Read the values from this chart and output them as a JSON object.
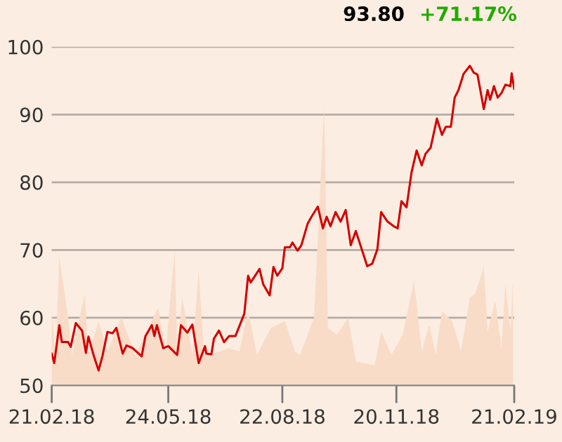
{
  "chart_data": {
    "type": "line",
    "annotations": [
      "93.80",
      "+71.17%"
    ],
    "xlim": [
      "2018-02-21",
      "2019-02-21"
    ],
    "xticks": [
      {
        "value": "2018-02-21",
        "label": "21.02.18"
      },
      {
        "value": "2018-05-24",
        "label": "24.05.18"
      },
      {
        "value": "2018-08-22",
        "label": "22.08.18"
      },
      {
        "value": "2018-11-20",
        "label": "20.11.18"
      },
      {
        "value": "2019-02-21",
        "label": "21.02.19"
      }
    ],
    "ylim": [
      50,
      100
    ],
    "yticks": [
      50,
      60,
      70,
      80,
      90,
      100
    ],
    "grid": "y",
    "legend": false,
    "series": [
      {
        "type": "area",
        "color": "#f8dcc8",
        "x": [
          "2018-02-21",
          "2018-02-24",
          "2018-02-27",
          "2018-03-06",
          "2018-03-09",
          "2018-03-19",
          "2018-03-22",
          "2018-03-30",
          "2018-04-06",
          "2018-04-17",
          "2018-04-28",
          "2018-05-16",
          "2018-05-22",
          "2018-05-29",
          "2018-05-31",
          "2018-06-04",
          "2018-06-12",
          "2018-06-17",
          "2018-06-21",
          "2018-07-04",
          "2018-07-11",
          "2018-07-19",
          "2018-07-26",
          "2018-08-02",
          "2018-08-13",
          "2018-08-24",
          "2018-09-01",
          "2018-09-05",
          "2018-09-16",
          "2018-09-24",
          "2018-09-27",
          "2018-10-04",
          "2018-10-13",
          "2018-10-19",
          "2018-11-03",
          "2018-11-08",
          "2018-11-16",
          "2018-11-25",
          "2018-12-04",
          "2018-12-10",
          "2018-12-16",
          "2018-12-21",
          "2018-12-26",
          "2019-01-03",
          "2019-01-10",
          "2019-01-17",
          "2019-01-21",
          "2019-01-28",
          "2019-01-31",
          "2019-02-06",
          "2019-02-11",
          "2019-02-14",
          "2019-02-18",
          "2019-02-20"
        ],
        "values": [
          61,
          54.5,
          69,
          60,
          54.5,
          63.5,
          54.5,
          59.5,
          55,
          60,
          54.5,
          61.5,
          55,
          70,
          55,
          63,
          54.5,
          67,
          54.5,
          55,
          55.5,
          55,
          61,
          54.5,
          58.5,
          59.5,
          55,
          54.5,
          60,
          91,
          58.5,
          57.5,
          60,
          53.5,
          53,
          58,
          54.5,
          57.5,
          65.5,
          55,
          59,
          54.5,
          61,
          59.5,
          55,
          63,
          63.5,
          67.5,
          58,
          62.5,
          55.5,
          65,
          58,
          65.5
        ]
      },
      {
        "color": "#d40000",
        "x": [
          "2018-02-21",
          "2018-02-23",
          "2018-02-27",
          "2018-03-01",
          "2018-03-06",
          "2018-03-08",
          "2018-03-12",
          "2018-03-17",
          "2018-03-20",
          "2018-03-22",
          "2018-03-26",
          "2018-03-30",
          "2018-04-02",
          "2018-04-06",
          "2018-04-10",
          "2018-04-13",
          "2018-04-18",
          "2018-04-21",
          "2018-04-26",
          "2018-05-03",
          "2018-05-06",
          "2018-05-11",
          "2018-05-13",
          "2018-05-15",
          "2018-05-20",
          "2018-05-24",
          "2018-05-31",
          "2018-06-03",
          "2018-06-08",
          "2018-06-12",
          "2018-06-17",
          "2018-06-22",
          "2018-06-23",
          "2018-06-27",
          "2018-06-29",
          "2018-07-03",
          "2018-07-07",
          "2018-07-11",
          "2018-07-16",
          "2018-07-19",
          "2018-07-23",
          "2018-07-26",
          "2018-07-28",
          "2018-08-04",
          "2018-08-07",
          "2018-08-12",
          "2018-08-15",
          "2018-08-18",
          "2018-08-22",
          "2018-08-24",
          "2018-08-28",
          "2018-08-30",
          "2018-09-03",
          "2018-09-06",
          "2018-09-11",
          "2018-09-14",
          "2018-09-19",
          "2018-09-23",
          "2018-09-26",
          "2018-09-29",
          "2018-10-03",
          "2018-10-07",
          "2018-10-11",
          "2018-10-15",
          "2018-10-19",
          "2018-10-23",
          "2018-10-28",
          "2018-11-01",
          "2018-11-05",
          "2018-11-08",
          "2018-11-13",
          "2018-11-18",
          "2018-11-21",
          "2018-11-24",
          "2018-11-28",
          "2018-12-02",
          "2018-12-06",
          "2018-12-10",
          "2018-12-13",
          "2018-12-17",
          "2018-12-22",
          "2018-12-26",
          "2018-12-29",
          "2019-01-02",
          "2019-01-05",
          "2019-01-08",
          "2019-01-12",
          "2019-01-17",
          "2019-01-20",
          "2019-01-23",
          "2019-01-28",
          "2019-01-31",
          "2019-02-02",
          "2019-02-05",
          "2019-02-08",
          "2019-02-11",
          "2019-02-14",
          "2019-02-18",
          "2019-02-19",
          "2019-02-21"
        ],
        "values": [
          54.7,
          53.3,
          58.9,
          56.4,
          56.4,
          55.7,
          59.2,
          58.1,
          54.8,
          57.2,
          54.5,
          52.2,
          54.3,
          57.9,
          57.7,
          58.5,
          54.7,
          55.9,
          55.5,
          54.3,
          57.3,
          58.9,
          57.3,
          58.9,
          55.5,
          55.8,
          54.5,
          58.9,
          57.8,
          59.0,
          53.3,
          55.8,
          54.7,
          54.6,
          56.9,
          58.1,
          56.4,
          57.3,
          57.3,
          58.7,
          60.6,
          66.2,
          65.2,
          67.2,
          64.9,
          63.3,
          67.5,
          66.2,
          67.3,
          70.4,
          70.4,
          71.1,
          69.9,
          70.7,
          73.9,
          74.9,
          76.4,
          73.2,
          74.9,
          73.5,
          75.6,
          74.2,
          75.9,
          70.7,
          72.8,
          70.5,
          67.6,
          68.0,
          70.1,
          75.6,
          74.2,
          73.5,
          73.2,
          77.2,
          76.3,
          81.5,
          84.7,
          82.5,
          84.2,
          85.1,
          89.4,
          87.0,
          88.2,
          88.2,
          92.5,
          93.6,
          96.0,
          97.2,
          96.2,
          95.9,
          90.8,
          93.6,
          92.2,
          94.2,
          92.5,
          93.2,
          94.4,
          94.2,
          96.1,
          93.8
        ]
      }
    ]
  }
}
